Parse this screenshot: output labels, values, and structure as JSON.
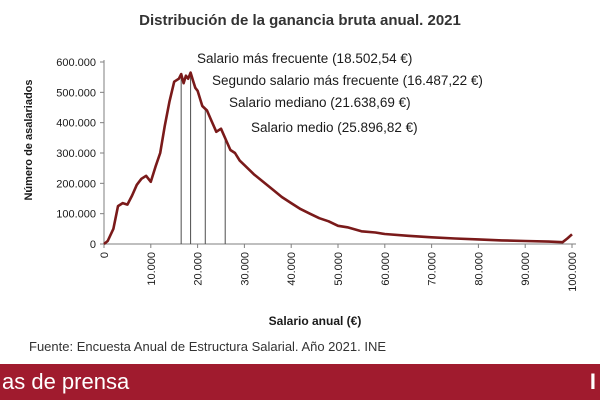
{
  "chart_data": {
    "type": "line",
    "title": "Distribución de la ganancia bruta anual. 2021",
    "xlabel": "Salario anual (€)",
    "ylabel": "Número de asalariados",
    "xlim": [
      0,
      100000
    ],
    "ylim": [
      0,
      600000
    ],
    "x_ticks": [
      "0",
      "10.000",
      "20.000",
      "30.000",
      "40.000",
      "50.000",
      "60.000",
      "70.000",
      "80.000",
      "90.000",
      "100.000"
    ],
    "y_ticks": [
      "0",
      "100.000",
      "200.000",
      "300.000",
      "400.000",
      "500.000",
      "600.000"
    ],
    "grid": false,
    "legend": "none",
    "line_color": "#7a1a1a",
    "series": [
      {
        "x": [
          0,
          800,
          2000,
          3000,
          4000,
          5000,
          6000,
          7000,
          8000,
          9000,
          10000,
          11000,
          12000,
          13000,
          14000,
          15000,
          16000,
          16500,
          17000,
          17500,
          18000,
          18500,
          19000,
          19500,
          20000,
          21000,
          22000,
          23000,
          24000,
          25000,
          26000,
          27000,
          28000,
          29000,
          30000,
          32000,
          34000,
          36000,
          38000,
          40000,
          42000,
          44000,
          46000,
          48000,
          50000,
          52000,
          55000,
          58000,
          60000,
          65000,
          70000,
          75000,
          80000,
          85000,
          90000,
          95000,
          98000,
          99000,
          100000
        ],
        "y": [
          0,
          10000,
          50000,
          125000,
          135000,
          130000,
          160000,
          195000,
          215000,
          225000,
          205000,
          255000,
          300000,
          390000,
          470000,
          535000,
          545000,
          560000,
          530000,
          555000,
          545000,
          565000,
          540000,
          515000,
          505000,
          455000,
          440000,
          405000,
          370000,
          380000,
          345000,
          310000,
          300000,
          275000,
          260000,
          230000,
          205000,
          180000,
          155000,
          135000,
          115000,
          100000,
          85000,
          75000,
          60000,
          55000,
          42000,
          38000,
          33000,
          27000,
          22000,
          18000,
          15000,
          12000,
          10000,
          8000,
          6000,
          18000,
          32000
        ]
      }
    ],
    "annotations": [
      {
        "text": "Salario más frecuente (18.502,54 €)",
        "x": 18502.54
      },
      {
        "text": "Segundo salario más frecuente (16.487,22 €)",
        "x": 16487.22
      },
      {
        "text": "Salario mediano (21.638,69 €)",
        "x": 21638.69
      },
      {
        "text": "Salario medio (25.896,82 €)",
        "x": 25896.82
      }
    ]
  },
  "source": "Fuente: Encuesta Anual de Estructura Salarial. Año 2021. INE",
  "banner": {
    "text": "as de prensa",
    "mark": "I",
    "color": "#a01b2e"
  }
}
